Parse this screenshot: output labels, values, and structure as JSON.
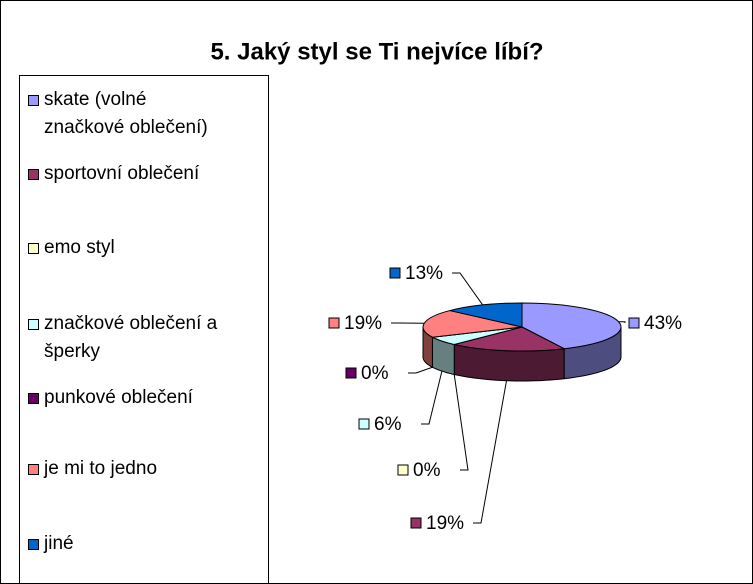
{
  "chart_data": {
    "type": "pie",
    "title": "5. Jaký styl se Ti nejvíce líbí?",
    "categories": [
      "skate (volné značkové oblečení)",
      "sportovní oblečení",
      "emo styl",
      "značkové oblečení a šperky",
      "punkové oblečení",
      "je mi to jedno",
      "jiné"
    ],
    "values": [
      43,
      19,
      0,
      6,
      0,
      19,
      13
    ],
    "value_labels": [
      "43%",
      "19%",
      "0%",
      "6%",
      "0%",
      "19%",
      "13%"
    ],
    "colors": [
      "#9999ff",
      "#993366",
      "#ffffcc",
      "#ccffff",
      "#660066",
      "#ff8080",
      "#0066cc"
    ],
    "legend": "left"
  }
}
